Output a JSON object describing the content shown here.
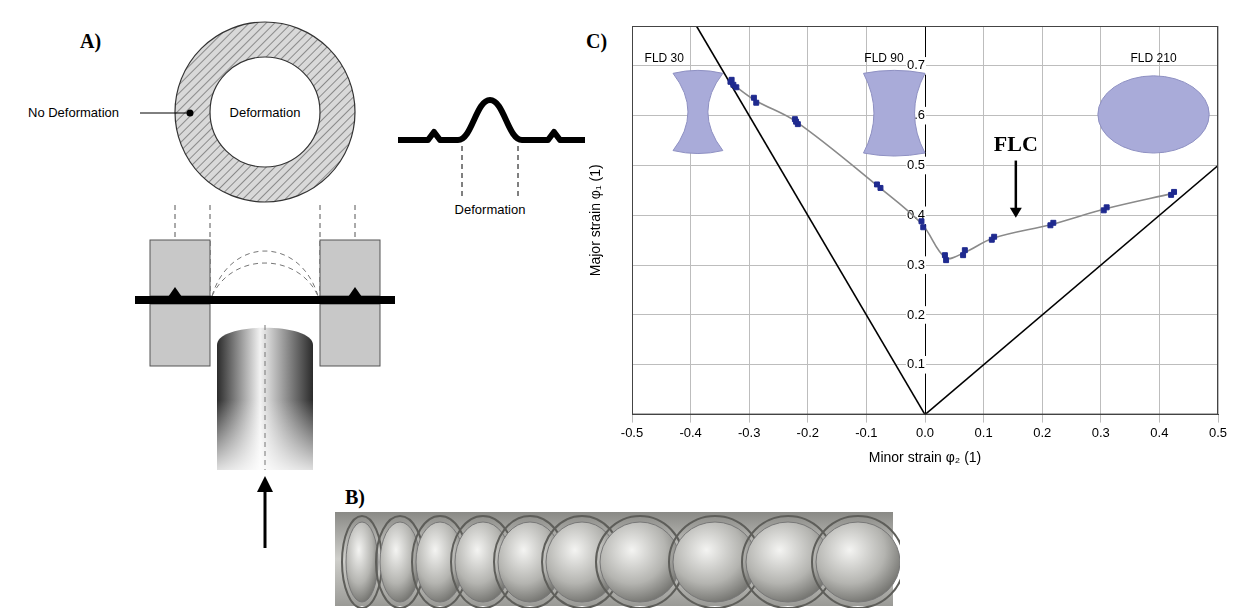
{
  "figure": {
    "panel_a": {
      "letter": "A)",
      "ring_outer_label": "No Deformation",
      "ring_inner_label": "Deformation",
      "profile_label": "Deformation"
    },
    "panel_b": {
      "letter": "B)"
    },
    "panel_c": {
      "letter": "C)"
    }
  },
  "chart_data": {
    "type": "scatter",
    "xlabel": "Minor strain φ₂ (1)",
    "ylabel": "Major strain φ₁ (1)",
    "xlim": [
      -0.5,
      0.5
    ],
    "xticks": [
      -0.5,
      -0.4,
      -0.3,
      -0.2,
      -0.1,
      {
        "value": 0,
        "label": "0.0"
      },
      0.1,
      0.2,
      0.3,
      0.4,
      0.5
    ],
    "ylim": [
      0,
      0.78
    ],
    "yticks": [
      0.1,
      0.2,
      0.3,
      0.4,
      0.5,
      0.6,
      0.7
    ],
    "grid": true,
    "series": [
      {
        "type": "line",
        "color": "#000000",
        "line_style": "solid",
        "x": [
          0,
          -0.39
        ],
        "values": [
          0,
          0.78
        ]
      },
      {
        "type": "line",
        "color": "#000000",
        "line_style": "solid",
        "x": [
          0,
          0.5
        ],
        "values": [
          0,
          0.5
        ]
      },
      {
        "type": "line",
        "color": "#8a8a8a",
        "line_style": "solid",
        "x": [
          -0.33,
          -0.29,
          -0.22,
          -0.08,
          -0.005,
          0.035,
          0.067,
          0.116,
          0.217,
          0.308,
          0.423
        ],
        "values": [
          0.665,
          0.631,
          0.588,
          0.458,
          0.382,
          0.315,
          0.325,
          0.354,
          0.382,
          0.413,
          0.444
        ]
      },
      {
        "type": "scatter",
        "color": "#1f2a8f",
        "marker": "square",
        "x": [
          -0.332,
          -0.327,
          -0.322,
          -0.33,
          -0.292,
          -0.288,
          -0.222,
          -0.217,
          -0.22,
          -0.082,
          -0.076,
          -0.006,
          -0.003,
          0.034,
          0.036,
          0.068,
          0.065,
          0.118,
          0.114,
          0.219,
          0.214,
          0.31,
          0.305,
          0.425,
          0.42
        ],
        "values": [
          0.668,
          0.662,
          0.657,
          0.672,
          0.636,
          0.626,
          0.593,
          0.583,
          0.588,
          0.462,
          0.455,
          0.388,
          0.376,
          0.32,
          0.31,
          0.33,
          0.32,
          0.357,
          0.351,
          0.385,
          0.38,
          0.416,
          0.41,
          0.447,
          0.441
        ]
      }
    ],
    "annotations": [
      {
        "text": "FLD 30"
      },
      {
        "text": "FLD 90"
      },
      {
        "text": "FLD 210"
      },
      {
        "text": "FLC"
      }
    ]
  }
}
